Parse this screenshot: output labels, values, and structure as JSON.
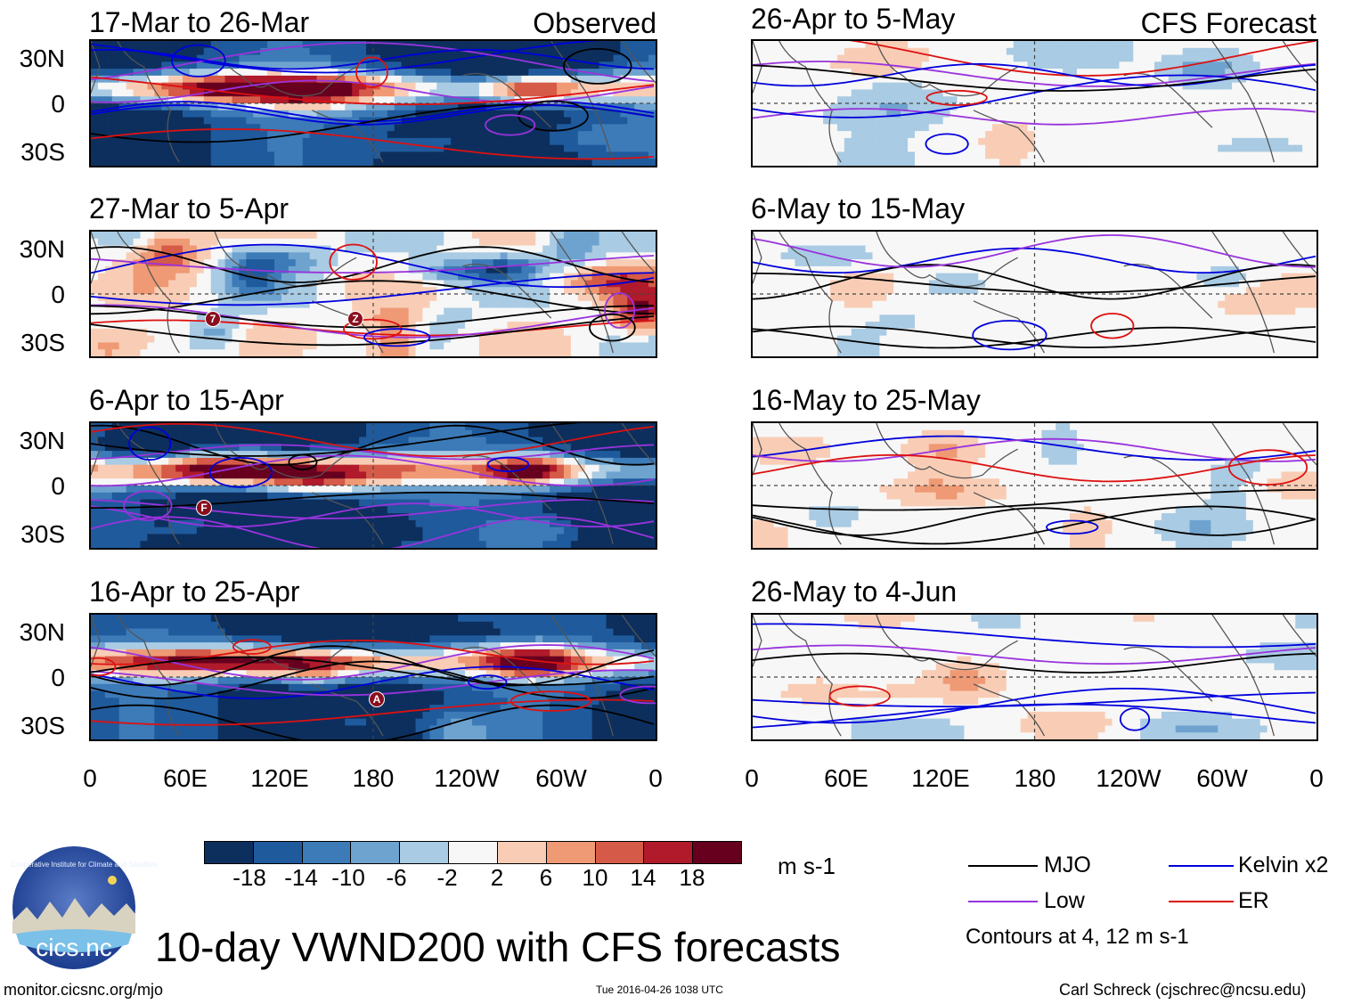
{
  "header": {
    "left_label": "Observed",
    "right_label": "CFS Forecast"
  },
  "panels_left": [
    {
      "title": "17-Mar to 26-Mar",
      "pattern": "strong"
    },
    {
      "title": "27-Mar to 5-Apr",
      "pattern": "mixed"
    },
    {
      "title": "6-Apr to 15-Apr",
      "pattern": "strong"
    },
    {
      "title": "16-Apr to 25-Apr",
      "pattern": "strong"
    }
  ],
  "panels_right": [
    {
      "title": "26-Apr to 5-May",
      "pattern": "weak"
    },
    {
      "title": "6-May to 15-May",
      "pattern": "weak"
    },
    {
      "title": "16-May to 25-May",
      "pattern": "weak"
    },
    {
      "title": "26-May to 4-Jun",
      "pattern": "weak"
    }
  ],
  "storm_markers": [
    "7",
    "Z",
    "F",
    "A"
  ],
  "axes": {
    "y_ticks": [
      "30N",
      "0",
      "30S"
    ],
    "x_ticks": [
      "0",
      "60E",
      "120E",
      "180",
      "120W",
      "60W",
      "0"
    ]
  },
  "colorbar": {
    "labels": [
      "-18",
      "-14",
      "-10",
      "-6",
      "-2",
      "2",
      "6",
      "10",
      "14",
      "18"
    ],
    "colors": [
      "#0c2f5e",
      "#1f5a9c",
      "#3c7bb8",
      "#6fa3cf",
      "#a9cbe3",
      "#dce9f2",
      "#f7f7f7",
      "#f9cdb5",
      "#ef9a75",
      "#d65a48",
      "#b01a2a",
      "#67001f"
    ],
    "units": "m s-1"
  },
  "legend": {
    "items": [
      {
        "label": "MJO",
        "color": "#000000"
      },
      {
        "label": "Kelvin x2",
        "color": "#0000dd"
      },
      {
        "label": "Low",
        "color": "#9933dd"
      },
      {
        "label": "ER",
        "color": "#dd1111"
      }
    ],
    "contours_note": "Contours at 4, 12 m s-1"
  },
  "chart_data": {
    "type": "heatmap",
    "title": "10-day VWND200 with CFS forecasts",
    "variable": "200 hPa zonal wind anomaly (VWND200)",
    "units": "m s-1",
    "x_axis": [
      "0",
      "60E",
      "120E",
      "180",
      "120W",
      "60W",
      "0"
    ],
    "y_axis": [
      "30N",
      "0",
      "30S"
    ],
    "levels": [
      -18,
      -14,
      -10,
      -6,
      -2,
      2,
      6,
      10,
      14,
      18
    ],
    "contour_levels": [
      4,
      12
    ],
    "contour_series": [
      "MJO",
      "Kelvin x2",
      "Low",
      "ER"
    ]
  },
  "logo": {
    "text": "cics.nc",
    "ring_text": "Cooperative Institute for Climate and Satellites"
  },
  "footer": {
    "url": "monitor.cicsnc.org/mjo",
    "timestamp": "Tue 2016-04-26 1038 UTC",
    "author": "Carl Schreck (cjschrec@ncsu.edu)"
  }
}
